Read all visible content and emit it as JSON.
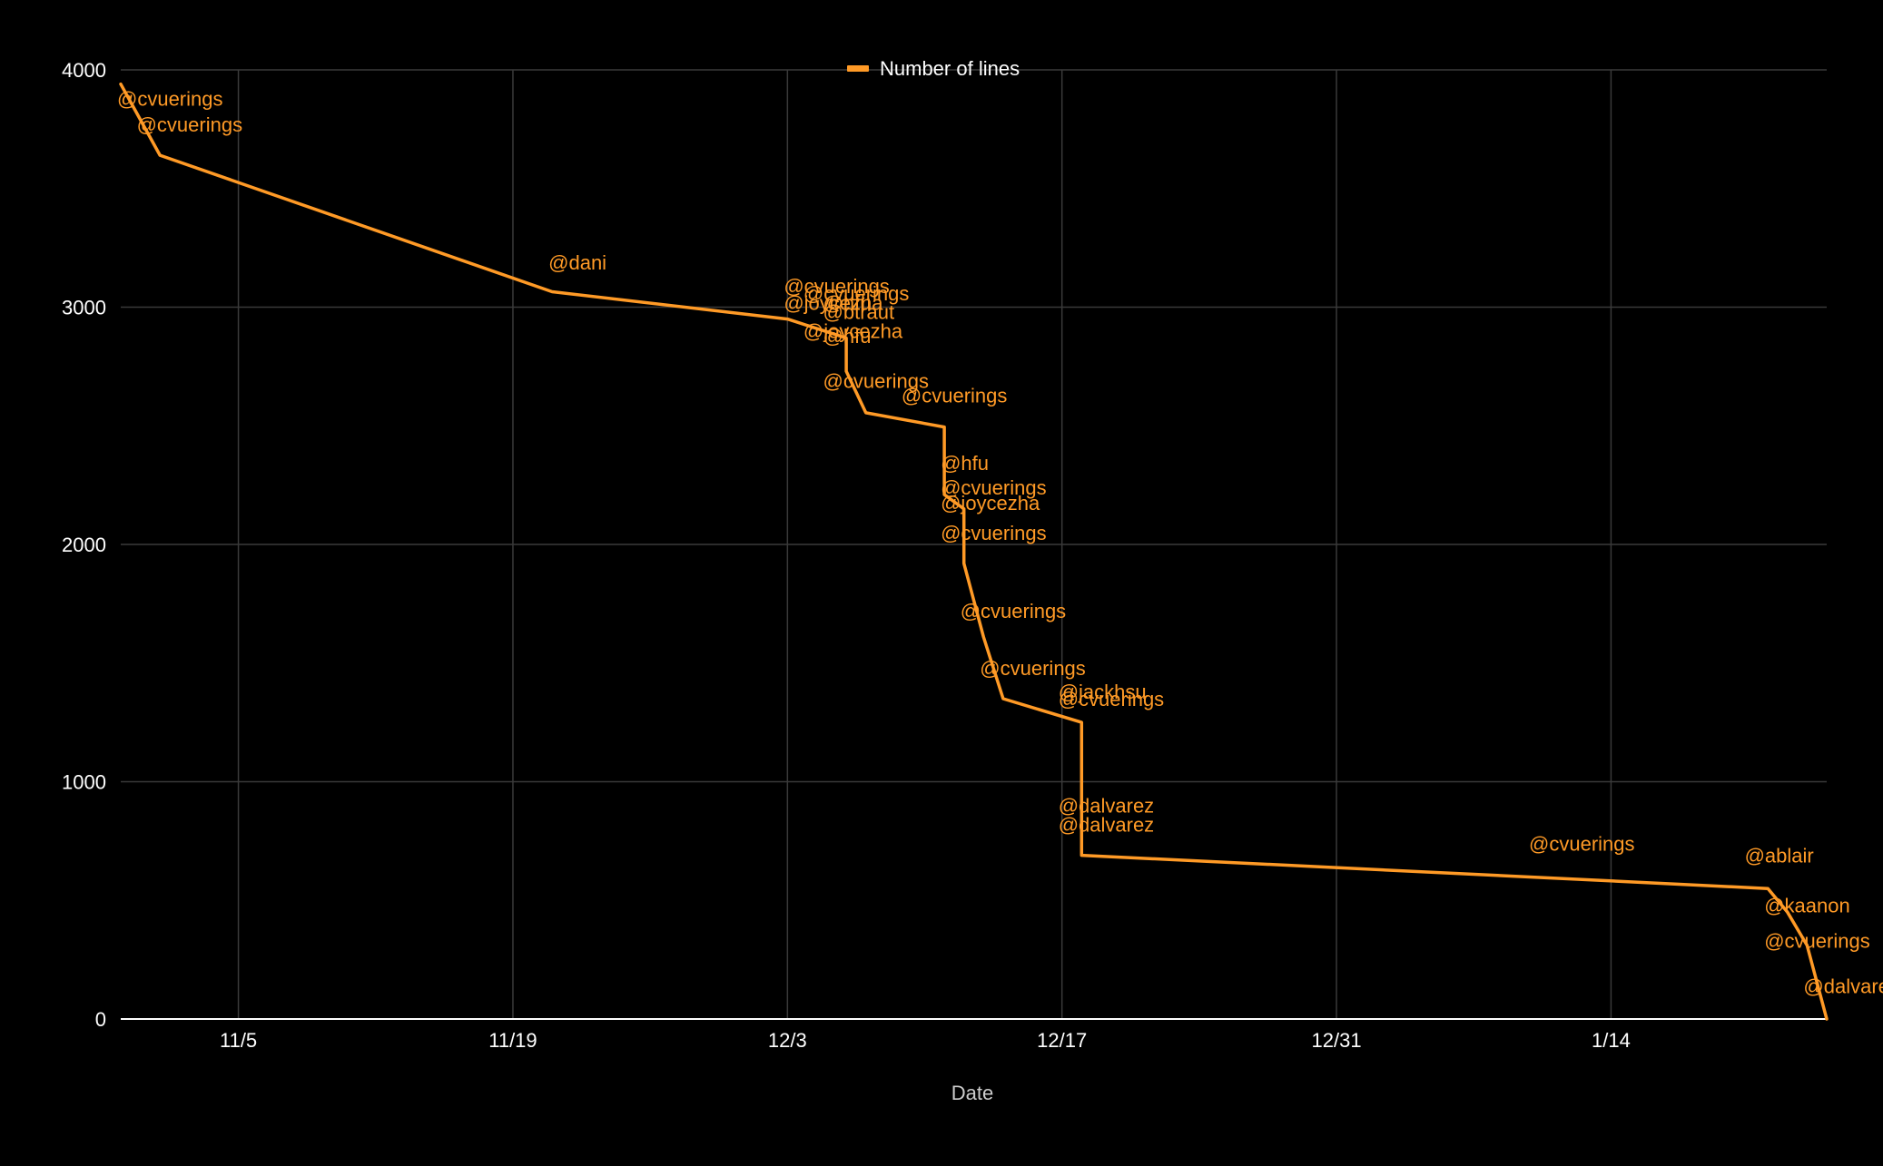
{
  "chart_data": {
    "type": "line",
    "title": "",
    "xlabel": "Date",
    "ylabel": "",
    "x_axis_type": "date",
    "x_range": [
      "2019-10-30",
      "2020-01-25"
    ],
    "ylim": [
      0,
      4000
    ],
    "y_ticks": [
      0,
      1000,
      2000,
      3000,
      4000
    ],
    "y_tick_labels": [
      "0",
      "1000",
      "2000",
      "3000",
      "4000"
    ],
    "x_ticks": [
      "2019-11-05",
      "2019-11-19",
      "2019-12-03",
      "2019-12-17",
      "2019-12-31",
      "2020-01-14"
    ],
    "x_tick_labels": [
      "11/5",
      "11/19",
      "12/3",
      "12/17",
      "12/31",
      "1/14"
    ],
    "grid": true,
    "legend_position": "top-center",
    "colors": {
      "series": "#ff9a26",
      "background": "#000000",
      "grid": "#3a3a3a",
      "axis": "#ffffff"
    },
    "series": [
      {
        "name": "Number of lines",
        "points": [
          [
            "2019-10-30",
            3940
          ],
          [
            "2019-11-01",
            3640
          ],
          [
            "2019-11-21",
            3065
          ],
          [
            "2019-12-03",
            2950
          ],
          [
            "2019-12-06",
            2870
          ],
          [
            "2019-12-06",
            2730
          ],
          [
            "2019-12-07",
            2555
          ],
          [
            "2019-12-11",
            2495
          ],
          [
            "2019-12-11",
            2335
          ],
          [
            "2019-12-11",
            2210
          ],
          [
            "2019-12-12",
            2150
          ],
          [
            "2019-12-12",
            1920
          ],
          [
            "2019-12-13",
            1610
          ],
          [
            "2019-12-14",
            1350
          ],
          [
            "2019-12-18",
            1250
          ],
          [
            "2019-12-18",
            690
          ],
          [
            "2020-01-22",
            550
          ],
          [
            "2020-01-23",
            450
          ],
          [
            "2020-01-24",
            310
          ],
          [
            "2020-01-25",
            0
          ]
        ]
      }
    ],
    "annotations": [
      {
        "text": "@cvuerings",
        "x": "2019-10-30",
        "y": 3880
      },
      {
        "text": "@cvuerings",
        "x": "2019-10-31",
        "y": 3770
      },
      {
        "text": "@dani",
        "x": "2019-11-21",
        "y": 3190
      },
      {
        "text": "@cvuerings",
        "x": "2019-12-03",
        "y": 3090
      },
      {
        "text": "@cvuerings",
        "x": "2019-12-04",
        "y": 3060
      },
      {
        "text": "@joycezha",
        "x": "2019-12-03",
        "y": 3020
      },
      {
        "text": "@hfu",
        "x": "2019-12-05",
        "y": 3020
      },
      {
        "text": "@btraut",
        "x": "2019-12-05",
        "y": 2980
      },
      {
        "text": "@joycezha",
        "x": "2019-12-04",
        "y": 2900
      },
      {
        "text": "@hfu",
        "x": "2019-12-05",
        "y": 2880
      },
      {
        "text": "@cvuerings",
        "x": "2019-12-05",
        "y": 2690
      },
      {
        "text": "@cvuerings",
        "x": "2019-12-09",
        "y": 2630
      },
      {
        "text": "@hfu",
        "x": "2019-12-11",
        "y": 2345
      },
      {
        "text": "@cvuerings",
        "x": "2019-12-11",
        "y": 2240
      },
      {
        "text": "@joycezha",
        "x": "2019-12-11",
        "y": 2175
      },
      {
        "text": "@cvuerings",
        "x": "2019-12-11",
        "y": 2050
      },
      {
        "text": "@cvuerings",
        "x": "2019-12-12",
        "y": 1720
      },
      {
        "text": "@cvuerings",
        "x": "2019-12-13",
        "y": 1480
      },
      {
        "text": "@jackhsu",
        "x": "2019-12-17",
        "y": 1380
      },
      {
        "text": "@cvuerings",
        "x": "2019-12-17",
        "y": 1350
      },
      {
        "text": "@dalvarez",
        "x": "2019-12-17",
        "y": 900
      },
      {
        "text": "@dalvarez",
        "x": "2019-12-17",
        "y": 820
      },
      {
        "text": "@cvuerings",
        "x": "2020-01-10",
        "y": 740
      },
      {
        "text": "@ablair",
        "x": "2020-01-21",
        "y": 690
      },
      {
        "text": "@kaanon",
        "x": "2020-01-22",
        "y": 480
      },
      {
        "text": "@cvuerings",
        "x": "2020-01-22",
        "y": 330
      },
      {
        "text": "@dalvarez",
        "x": "2020-01-24",
        "y": 140
      }
    ]
  }
}
